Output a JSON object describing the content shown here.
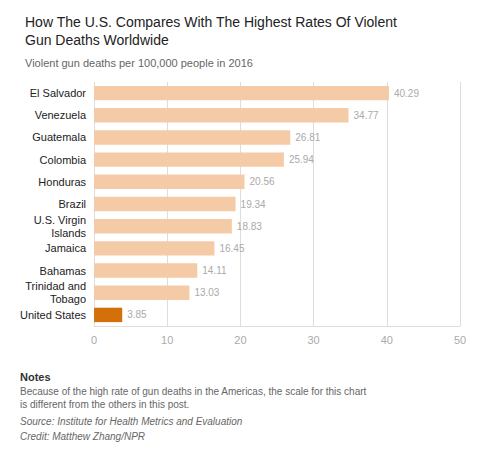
{
  "chart_data": {
    "type": "bar",
    "orientation": "horizontal",
    "title": "How The U.S. Compares With The Highest Rates Of Violent\nGun Deaths Worldwide",
    "subtitle": "Violent gun deaths per 100,000 people in 2016",
    "categories": [
      "El Salvador",
      "Venezuela",
      "Guatemala",
      "Colombia",
      "Honduras",
      "Brazil",
      "U.S. Virgin\nIslands",
      "Jamaica",
      "Bahamas",
      "Trinidad and\nTobago",
      "United States"
    ],
    "values": [
      40.29,
      34.77,
      26.81,
      25.94,
      20.56,
      19.34,
      18.83,
      16.45,
      14.11,
      13.03,
      3.85
    ],
    "colors": [
      "#f5cba7",
      "#f5cba7",
      "#f5cba7",
      "#f5cba7",
      "#f5cba7",
      "#f5cba7",
      "#f5cba7",
      "#f5cba7",
      "#f5cba7",
      "#f5cba7",
      "#d4700a"
    ],
    "xlim": [
      0,
      50
    ],
    "xticks": [
      0,
      10,
      20,
      30,
      40,
      50
    ],
    "grid": true,
    "data_labels": true,
    "annotations": [
      "Notes",
      "Because of the high rate of gun deaths in the Americas, the scale for this chart is different from the others in this post.",
      "Source: Institute for Health Metrics and Evaluation",
      "Credit: Matthew Zhang/NPR"
    ]
  }
}
